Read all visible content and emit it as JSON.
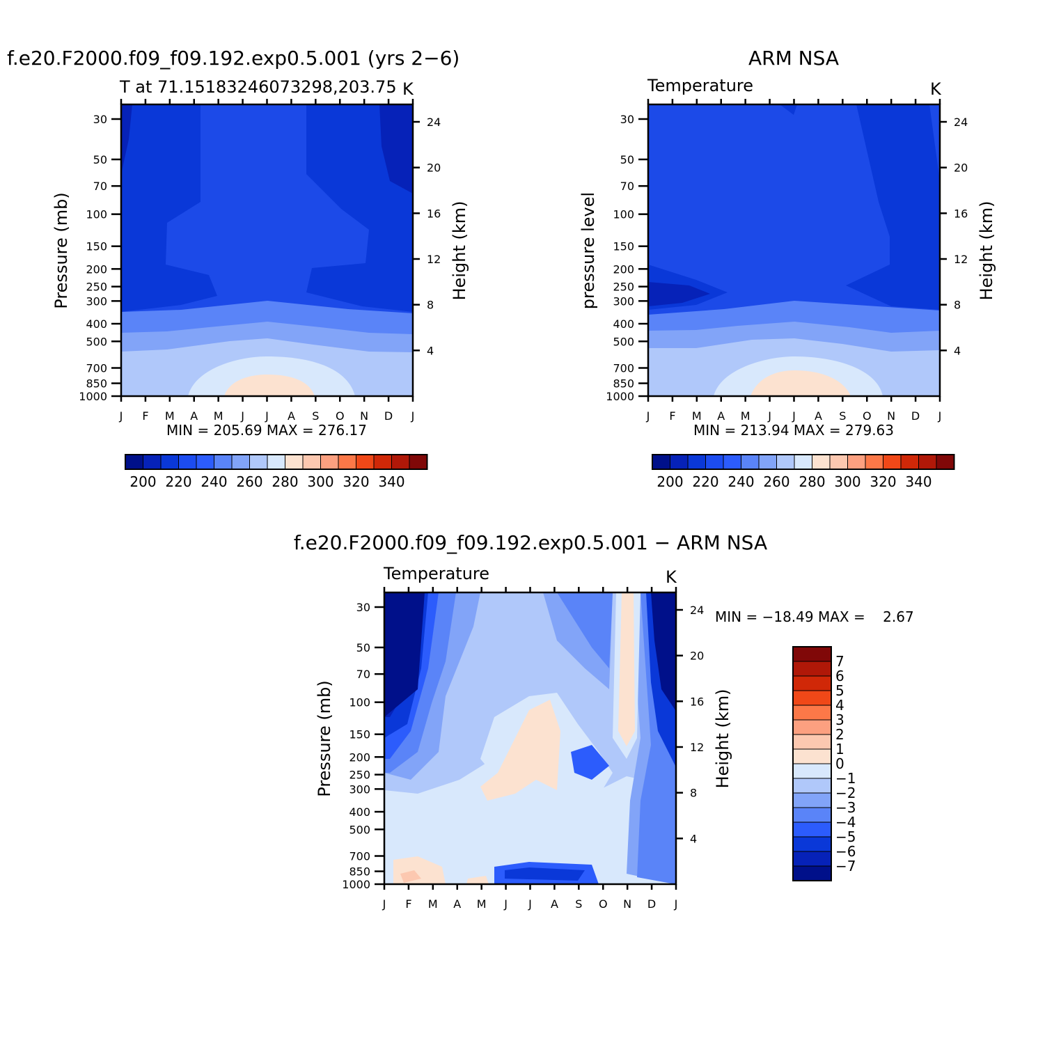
{
  "chart_data": [
    {
      "type": "contour",
      "title": "f.e20.F2000.f09_f09.192.exp0.5.001 (yrs 2−6)",
      "subtitle_left": "T at 71.15183246073298,203.75",
      "subtitle_right": "K",
      "ylabel_left": "Pressure (mb)",
      "ylabel_right": "Height (km)",
      "months": [
        "J",
        "F",
        "M",
        "A",
        "M",
        "J",
        "J",
        "A",
        "S",
        "O",
        "N",
        "D",
        "J"
      ],
      "pressure_ticks": [
        "30",
        "50",
        "70",
        "100",
        "150",
        "200",
        "250",
        "300",
        "400",
        "500",
        "700",
        "850",
        "1000"
      ],
      "height_ticks": [
        "24",
        "20",
        "16",
        "12",
        "8",
        "4"
      ],
      "min_max": "MIN = 205.69 MAX = 276.17",
      "colorbar_labels": [
        "200",
        "220",
        "240",
        "260",
        "280",
        "300",
        "320",
        "340"
      ],
      "fill_order": [
        "#0828c8",
        "#1c4ae8",
        "#2858f8",
        "#5a82f8",
        "#82a4f8",
        "#b0c8fa",
        "#d8e8fc",
        "#fce0d0"
      ]
    },
    {
      "type": "contour",
      "title": "ARM NSA",
      "subtitle_left": "Temperature",
      "subtitle_right": "K",
      "ylabel_left": "pressure level",
      "ylabel_right": "Height (km)",
      "months": [
        "J",
        "F",
        "M",
        "A",
        "M",
        "J",
        "J",
        "A",
        "S",
        "O",
        "N",
        "D",
        "J"
      ],
      "pressure_ticks": [
        "30",
        "50",
        "70",
        "100",
        "150",
        "200",
        "250",
        "300",
        "400",
        "500",
        "700",
        "850",
        "1000"
      ],
      "height_ticks": [
        "24",
        "20",
        "16",
        "12",
        "8",
        "4"
      ],
      "min_max": "MIN = 213.94 MAX = 279.63",
      "colorbar_labels": [
        "200",
        "220",
        "240",
        "260",
        "280",
        "300",
        "320",
        "340"
      ]
    },
    {
      "type": "contour",
      "title": "f.e20.F2000.f09_f09.192.exp0.5.001 − ARM NSA",
      "subtitle_left": "Temperature",
      "subtitle_right": "K",
      "ylabel_left": "Pressure (mb)",
      "ylabel_right": "Height (km)",
      "months": [
        "J",
        "F",
        "M",
        "A",
        "M",
        "J",
        "J",
        "A",
        "S",
        "O",
        "N",
        "D",
        "J"
      ],
      "pressure_ticks": [
        "30",
        "50",
        "70",
        "100",
        "150",
        "200",
        "250",
        "300",
        "400",
        "500",
        "700",
        "850",
        "1000"
      ],
      "height_ticks": [
        "24",
        "20",
        "16",
        "12",
        "8",
        "4"
      ],
      "min_max": "MIN = −18.49 MAX =    2.67",
      "colorbar_labels": [
        "7",
        "6",
        "5",
        "4",
        "3",
        "2",
        "1",
        "0",
        "−1",
        "−2",
        "−3",
        "−4",
        "−5",
        "−6",
        "−7"
      ]
    }
  ],
  "palette_abs": [
    "#00108a",
    "#0622b8",
    "#0a38d8",
    "#1c4cf0",
    "#2c5cfc",
    "#5a84f8",
    "#82a4f8",
    "#b0c8fa",
    "#d8e8fc",
    "#fce2d0",
    "#fcc8b0",
    "#fca080",
    "#fc7848",
    "#f04818",
    "#d02808",
    "#b01808",
    "#800808"
  ],
  "palette_diff": [
    "#800808",
    "#b01808",
    "#d02808",
    "#f04818",
    "#fc7848",
    "#fca080",
    "#fcc8b0",
    "#fce2d0",
    "#d8e8fc",
    "#b0c8fa",
    "#82a4f8",
    "#5a84f8",
    "#2c5cfc",
    "#0a38d8",
    "#0622b8",
    "#00108a"
  ]
}
